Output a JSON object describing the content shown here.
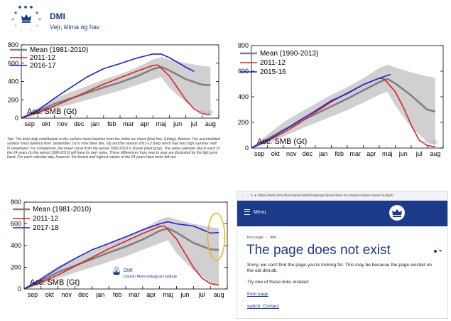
{
  "logo": {
    "name": "DMI",
    "tagline": "Vejr, klima og hav"
  },
  "caption": "Top: The total daily contribution to the surface mass balance from the entire ice sheet (blue line, Gt/day). Bottom: The accumulated surface mass balance from September 1st to now (blue line, Gt) and the season 2011-12 (red) which had very high summer melt in Greenland. For comparison, the mean curve from the period 1990-2013 is shown (dark grey). The same calendar day in each of the 24 years (in the period 1990-2013) will have its own value. These differences from year to year are illustrated by the light grey band. For each calendar day, however, the lowest and highest values of the 24 years have been left out.",
  "colors": {
    "mean": "#808080",
    "red": "#e02020",
    "blue": "#2020dd",
    "band": "#d0d0d0",
    "highlight": "#e8b820",
    "brand": "#1c3a8a"
  },
  "chart_data": [
    {
      "type": "line",
      "months": [
        "sep",
        "okt",
        "nov",
        "dec",
        "jan",
        "feb",
        "mar",
        "apr",
        "maj",
        "jun",
        "jul",
        "aug"
      ],
      "yticks": [
        "0",
        "200",
        "400",
        "600",
        "800"
      ],
      "ylim": [
        0,
        800
      ],
      "ylabel": "Acc. SMB (Gt)",
      "watermark": "dmi.dk",
      "legend_position": "top-left",
      "series": [
        {
          "name": "Mean (1981-2010)",
          "role": "mean",
          "x": [
            0,
            1,
            2,
            3,
            4,
            5,
            6,
            7,
            8,
            8.5,
            9,
            10,
            11,
            11.5
          ],
          "y": [
            0,
            75,
            155,
            215,
            275,
            335,
            390,
            455,
            535,
            560,
            520,
            425,
            365,
            360
          ]
        },
        {
          "name": "2011-12",
          "role": "red",
          "x": [
            0,
            1,
            2,
            3,
            4,
            5,
            6,
            7,
            8,
            8.3,
            9,
            9.5,
            10,
            10.5,
            11,
            11.5
          ],
          "y": [
            0,
            60,
            130,
            210,
            290,
            370,
            440,
            510,
            575,
            580,
            460,
            330,
            200,
            100,
            50,
            35
          ]
        },
        {
          "name": "2016-17",
          "role": "blue",
          "x": [
            0,
            1,
            2,
            3,
            4,
            5,
            6,
            7,
            8,
            8.5,
            9,
            10,
            10.5
          ],
          "y": [
            0,
            85,
            215,
            335,
            450,
            540,
            595,
            655,
            700,
            700,
            660,
            555,
            510
          ]
        }
      ],
      "band": {
        "x": [
          0,
          1,
          2,
          3,
          4,
          5,
          6,
          7,
          8,
          8.5,
          9,
          10,
          11,
          11.5
        ],
        "lower": [
          0,
          40,
          100,
          150,
          200,
          250,
          300,
          360,
          420,
          450,
          330,
          170,
          60,
          30
        ],
        "upper": [
          0,
          110,
          210,
          285,
          350,
          420,
          480,
          550,
          640,
          665,
          640,
          600,
          570,
          560
        ]
      }
    },
    {
      "type": "line",
      "months": [
        "sep",
        "okt",
        "nov",
        "dec",
        "jan",
        "feb",
        "mar",
        "apr",
        "maj",
        "jun",
        "jul",
        "aug"
      ],
      "yticks": [
        "0",
        "200",
        "400",
        "600",
        "800"
      ],
      "ylim": [
        0,
        800
      ],
      "ylabel": "Acc. SMB (Gt)",
      "watermark": "dmi.dk",
      "legend_position": "top-left",
      "series": [
        {
          "name": "Mean (1990-2013)",
          "role": "mean",
          "x": [
            0,
            1,
            2,
            3,
            4,
            5,
            6,
            7,
            8,
            8.5,
            9,
            10,
            11,
            11.5
          ],
          "y": [
            0,
            70,
            140,
            205,
            265,
            325,
            385,
            450,
            515,
            540,
            505,
            410,
            300,
            285
          ]
        },
        {
          "name": "2011-12",
          "role": "red",
          "x": [
            0,
            1,
            2,
            3,
            4,
            5,
            6,
            7,
            8,
            8.3,
            9,
            9.5,
            10,
            10.5,
            11,
            11.5
          ],
          "y": [
            0,
            55,
            120,
            195,
            280,
            360,
            430,
            495,
            545,
            540,
            440,
            320,
            180,
            60,
            20,
            10
          ]
        },
        {
          "name": "2015-16",
          "role": "blue",
          "x": [
            0,
            1,
            2,
            3,
            4,
            5,
            6,
            7,
            8,
            8.7
          ],
          "y": [
            0,
            60,
            135,
            215,
            290,
            370,
            425,
            495,
            545,
            575
          ]
        }
      ],
      "band": {
        "x": [
          0,
          1,
          2,
          3,
          4,
          5,
          6,
          7,
          8,
          8.5,
          9,
          10,
          11,
          11.5
        ],
        "lower": [
          0,
          35,
          90,
          145,
          195,
          245,
          295,
          355,
          415,
          440,
          330,
          160,
          50,
          20
        ],
        "upper": [
          0,
          105,
          200,
          275,
          345,
          415,
          475,
          545,
          625,
          650,
          630,
          590,
          560,
          550
        ]
      }
    },
    {
      "type": "line",
      "months": [
        "sep",
        "okt",
        "nov",
        "dec",
        "jan",
        "feb",
        "mar",
        "apr",
        "maj",
        "jun",
        "jul",
        "aug"
      ],
      "yticks": [
        "0",
        "200",
        "400",
        "600",
        "800"
      ],
      "ylim": [
        0,
        800
      ],
      "ylabel": "Acc. SMB (Gt)",
      "legend_position": "top-left",
      "series": [
        {
          "name": "Mean (1981-2010)",
          "role": "mean",
          "x": [
            0,
            1,
            2,
            3,
            4,
            5,
            6,
            7,
            8,
            8.5,
            9,
            10,
            11,
            11.5
          ],
          "y": [
            0,
            75,
            155,
            215,
            275,
            335,
            390,
            455,
            535,
            560,
            520,
            425,
            365,
            360
          ]
        },
        {
          "name": "2011-12",
          "role": "red",
          "x": [
            0,
            1,
            2,
            3,
            4,
            5,
            6,
            7,
            8,
            8.3,
            9,
            9.5,
            10,
            10.5,
            11,
            11.5
          ],
          "y": [
            0,
            60,
            130,
            210,
            290,
            370,
            440,
            510,
            575,
            580,
            460,
            330,
            200,
            100,
            50,
            35
          ]
        },
        {
          "name": "2017-18",
          "role": "blue",
          "x": [
            0,
            1,
            2,
            3,
            4,
            5,
            6,
            7,
            8,
            8.5,
            9,
            10,
            11,
            11.5
          ],
          "y": [
            0,
            90,
            190,
            280,
            360,
            420,
            480,
            545,
            600,
            620,
            600,
            580,
            515,
            520
          ]
        }
      ],
      "band": {
        "x": [
          0,
          1,
          2,
          3,
          4,
          5,
          6,
          7,
          8,
          8.5,
          9,
          10,
          11,
          11.5
        ],
        "lower": [
          0,
          40,
          100,
          150,
          200,
          250,
          300,
          360,
          420,
          450,
          330,
          170,
          60,
          30
        ],
        "upper": [
          0,
          110,
          210,
          285,
          350,
          420,
          480,
          550,
          640,
          665,
          640,
          600,
          570,
          560
        ]
      },
      "inset_logo": {
        "name": "DMI",
        "subtitle": "Danish Meteorological Institute"
      }
    }
  ],
  "browser": {
    "url": "https://www.dmi.dk/en/groenland/maalinger/greenland-ice-sheet-surface-mass-budget/",
    "menu_label": "Menu",
    "breadcrumb": {
      "home": "front page",
      "current": "404"
    },
    "title": "The page does not exist",
    "message": "Sorry, we can't find the page you're looking for. This may be because the page existed on the old dmi.dk.",
    "links_intro": "Try one of these links instead:",
    "links": [
      "front page",
      "switch. Contact"
    ]
  }
}
